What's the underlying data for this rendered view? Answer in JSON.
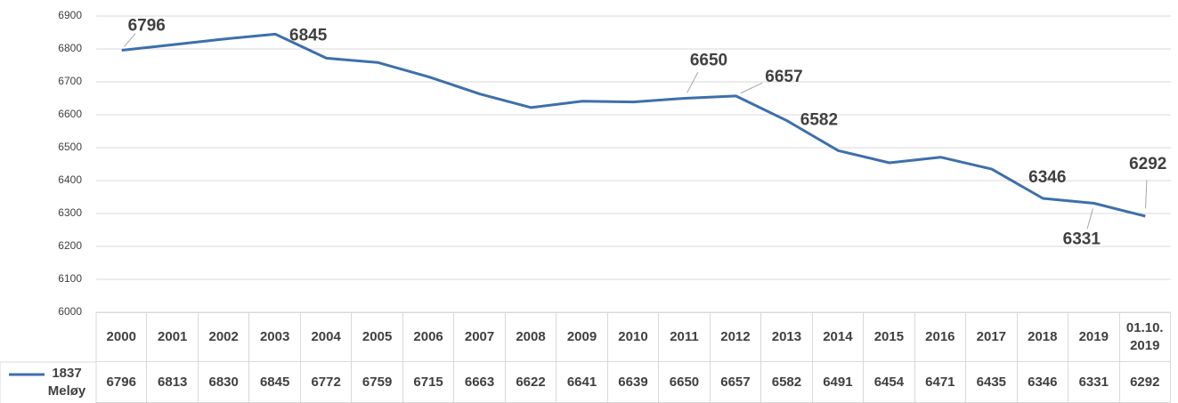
{
  "chart_data": {
    "type": "line",
    "categories": [
      "2000",
      "2001",
      "2002",
      "2003",
      "2004",
      "2005",
      "2006",
      "2007",
      "2008",
      "2009",
      "2010",
      "2011",
      "2012",
      "2013",
      "2014",
      "2015",
      "2016",
      "2017",
      "2018",
      "2019",
      "01.10. 2019"
    ],
    "series": [
      {
        "name": "1837 Meløy",
        "color": "#3e6fac",
        "values": [
          6796,
          6813,
          6830,
          6845,
          6772,
          6759,
          6715,
          6663,
          6622,
          6641,
          6639,
          6650,
          6657,
          6582,
          6491,
          6454,
          6471,
          6435,
          6346,
          6331,
          6292
        ]
      }
    ],
    "label_indices": [
      0,
      3,
      11,
      12,
      13,
      18,
      19,
      20
    ],
    "ylim": [
      6000,
      6900
    ],
    "yticks": [
      6000,
      6100,
      6200,
      6300,
      6400,
      6500,
      6600,
      6700,
      6800,
      6900
    ],
    "grid": true
  }
}
